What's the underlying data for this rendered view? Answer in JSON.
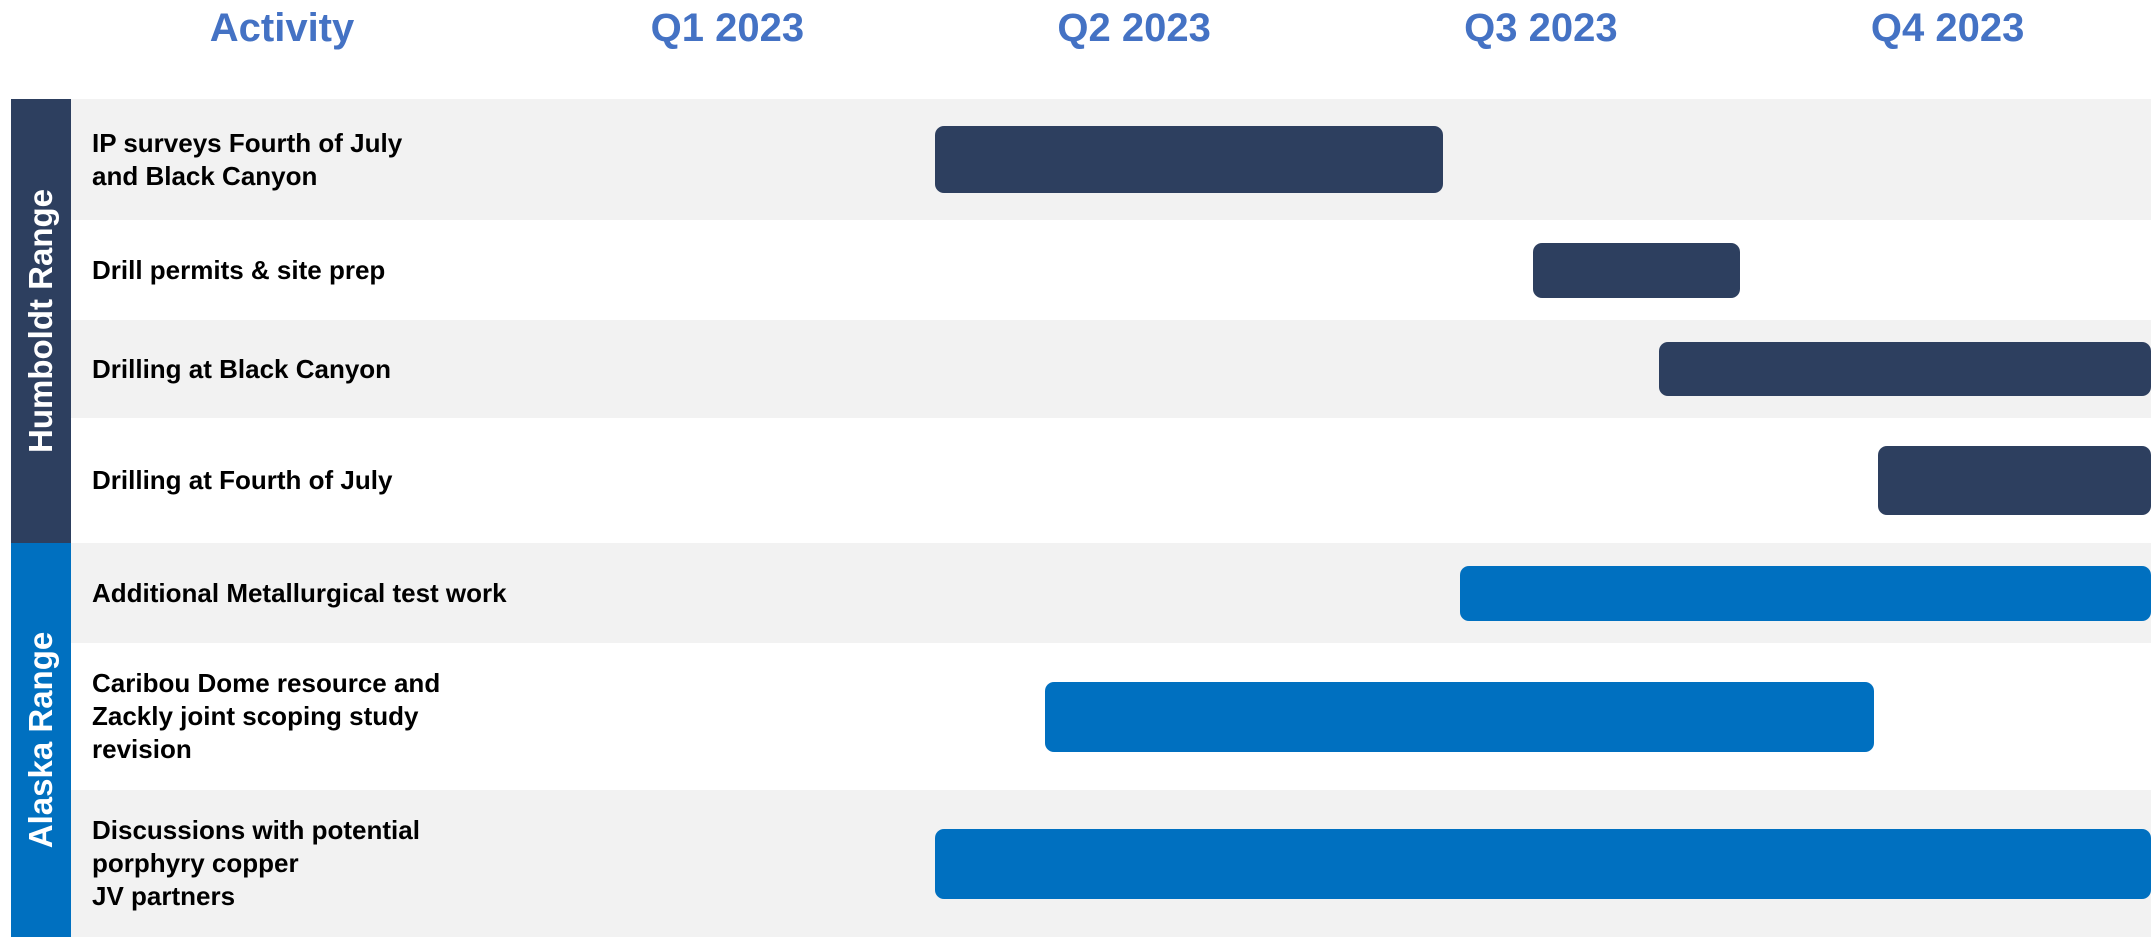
{
  "chart_data": {
    "type": "gantt",
    "header": "Activity",
    "xlim": [
      0,
      4
    ],
    "xticks": [
      {
        "value": 0.5,
        "label": "Q1 2023"
      },
      {
        "value": 1.5,
        "label": "Q2 2023"
      },
      {
        "value": 2.5,
        "label": "Q3 2023"
      },
      {
        "value": 3.5,
        "label": "Q4 2023"
      }
    ],
    "groups": [
      {
        "name": "Humboldt Range",
        "color": "#2d3f5f",
        "tasks": [
          {
            "label": "IP surveys Fourth of July\nand Black Canyon",
            "start": 1.01,
            "end": 2.26
          },
          {
            "label": "Drill permits & site prep",
            "start": 2.48,
            "end": 2.99
          },
          {
            "label": "Drilling at Black Canyon",
            "start": 2.79,
            "end": 4.0
          },
          {
            "label": "Drilling at Fourth of July",
            "start": 3.33,
            "end": 4.0
          }
        ]
      },
      {
        "name": "Alaska Range",
        "color": "#0070c0",
        "tasks": [
          {
            "label": "Additional Metallurgical test work",
            "start": 2.3,
            "end": 4.0
          },
          {
            "label": "Caribou Dome resource and\nZackly joint scoping study\nrevision",
            "start": 1.28,
            "end": 3.32
          },
          {
            "label": "Discussions with potential\nporphyry copper\nJV partners",
            "start": 1.01,
            "end": 4.0
          }
        ]
      }
    ]
  }
}
